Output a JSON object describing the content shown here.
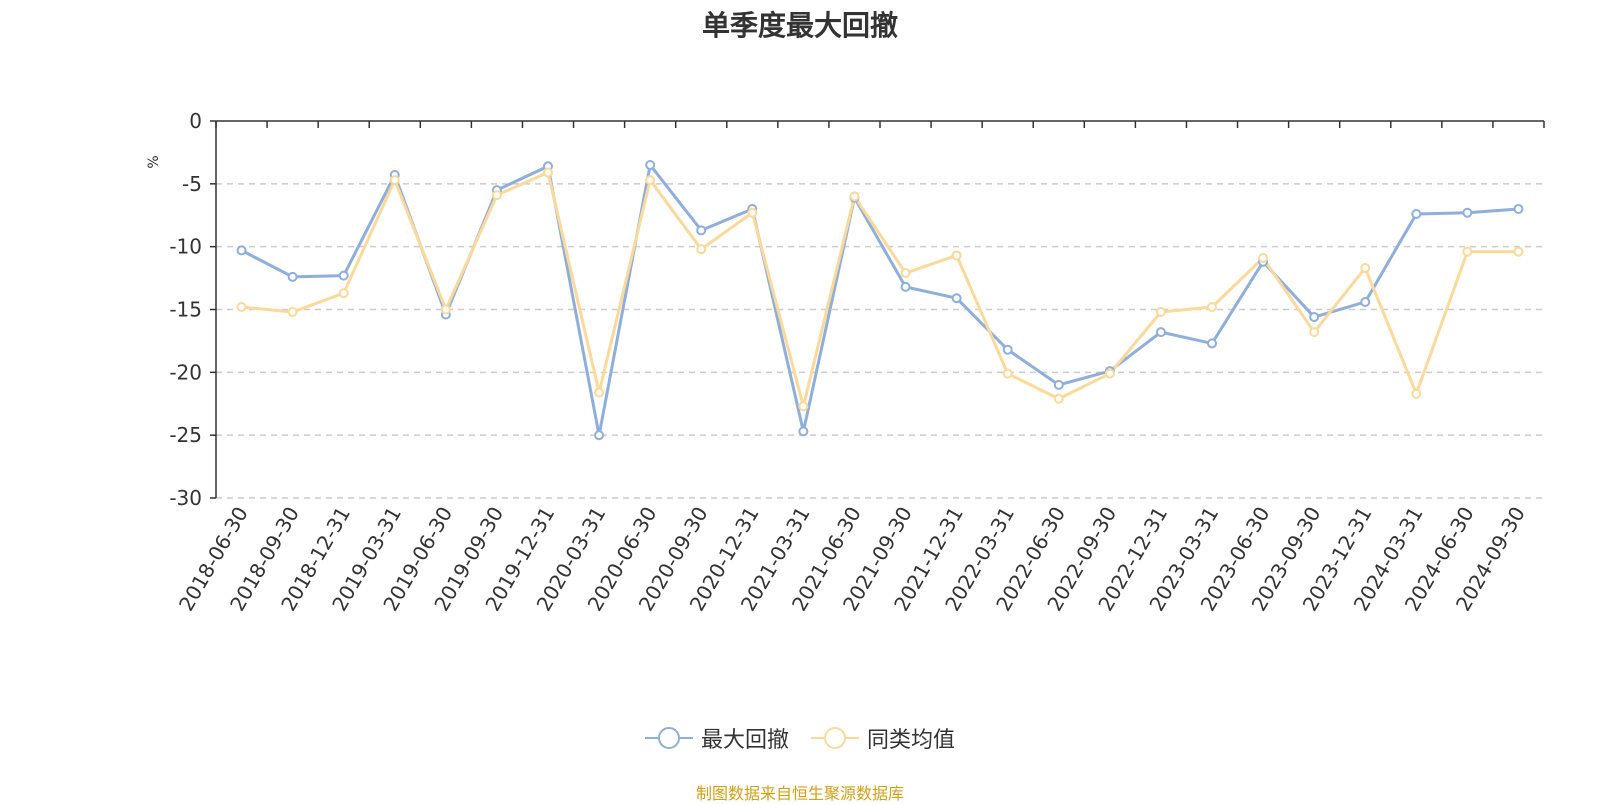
{
  "chart_data": {
    "type": "line",
    "title": "单季度最大回撤",
    "ylabel": "%",
    "xlabel": "",
    "ylim": [
      -30,
      0
    ],
    "yticks": [
      0,
      -5,
      -10,
      -15,
      -20,
      -25,
      -30
    ],
    "grid": true,
    "legend_position": "bottom",
    "categories": [
      "2018-06-30",
      "2018-09-30",
      "2018-12-31",
      "2019-03-31",
      "2019-06-30",
      "2019-09-30",
      "2019-12-31",
      "2020-03-31",
      "2020-06-30",
      "2020-09-30",
      "2020-12-31",
      "2021-03-31",
      "2021-06-30",
      "2021-09-30",
      "2021-12-31",
      "2022-03-31",
      "2022-06-30",
      "2022-09-30",
      "2022-12-31",
      "2023-03-31",
      "2023-06-30",
      "2023-09-30",
      "2023-12-31",
      "2024-03-31",
      "2024-06-30",
      "2024-09-30"
    ],
    "series": [
      {
        "name": "最大回撤",
        "color": "#8eaedc",
        "values": [
          -10.3,
          -12.4,
          -12.3,
          -4.3,
          -15.4,
          -5.5,
          -3.6,
          -25.0,
          -3.5,
          -8.7,
          -7.0,
          -24.7,
          -6.1,
          -13.2,
          -14.1,
          -18.2,
          -21.0,
          -19.9,
          -16.8,
          -17.7,
          -11.2,
          -15.6,
          -14.4,
          -7.4,
          -7.3,
          -7.0
        ]
      },
      {
        "name": "同类均值",
        "color": "#fbd99a",
        "values": [
          -14.8,
          -15.2,
          -13.7,
          -4.7,
          -15.0,
          -5.9,
          -4.1,
          -21.6,
          -4.7,
          -10.2,
          -7.3,
          -22.7,
          -6.0,
          -12.1,
          -10.7,
          -20.1,
          -22.1,
          -20.1,
          -15.2,
          -14.8,
          -10.9,
          -16.8,
          -11.7,
          -21.7,
          -10.4,
          -10.4
        ]
      }
    ]
  },
  "source_text": "制图数据来自恒生聚源数据库",
  "colors": {
    "title": "#333333",
    "axis": "#333333",
    "grid": "#cccccc",
    "ylabel": "#ff0000",
    "source": "#d4a017"
  }
}
